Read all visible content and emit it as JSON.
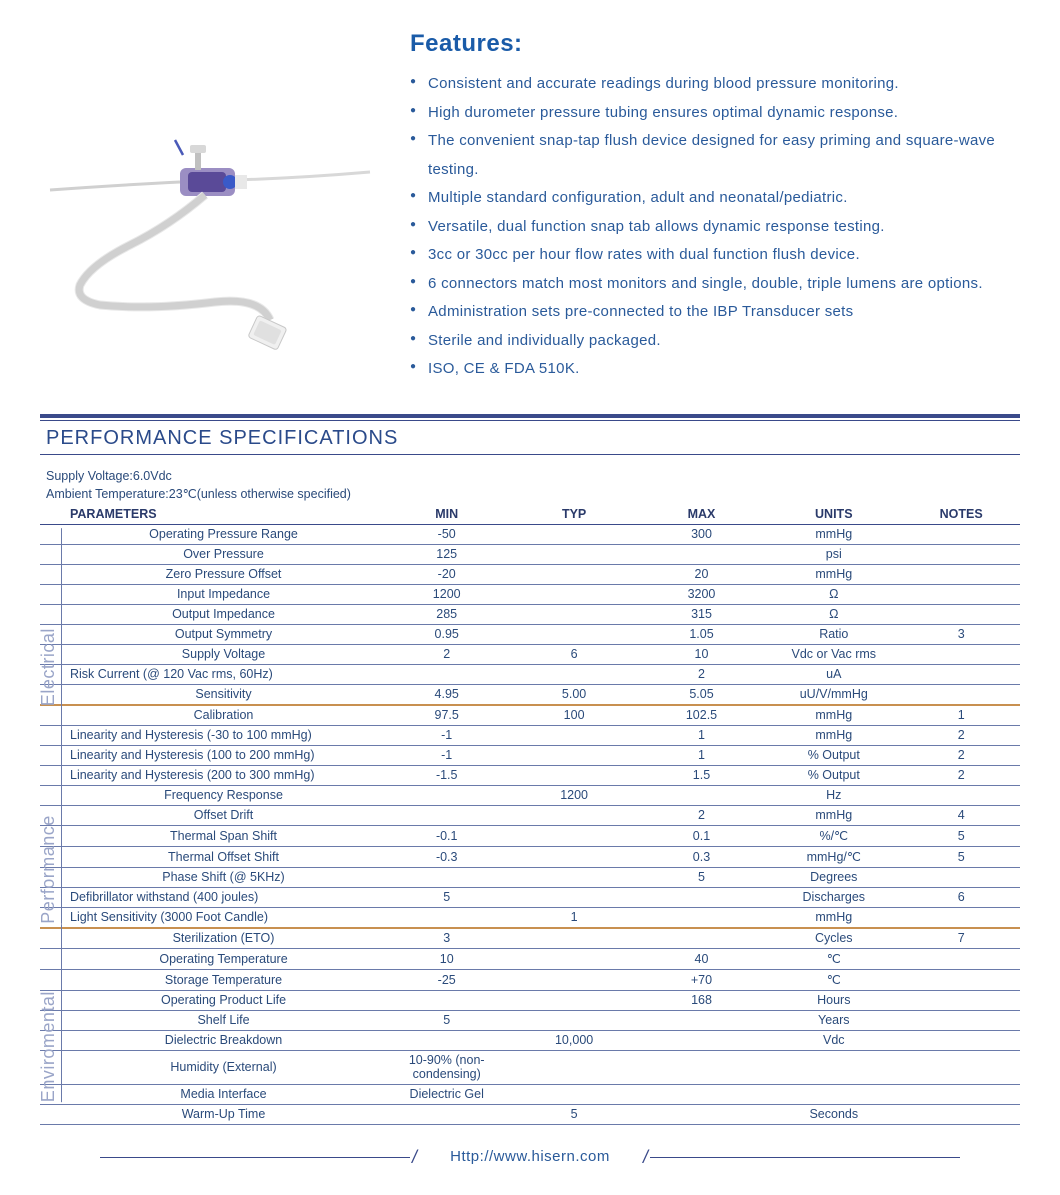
{
  "features": {
    "title": "Features:",
    "items": [
      "Consistent and accurate readings during blood pressure monitoring.",
      "High durometer pressure tubing ensures optimal dynamic response.",
      "The convenient snap-tap flush device designed for easy priming and square-wave testing.",
      "Multiple standard configuration, adult and neonatal/pediatric.",
      "Versatile, dual function snap tab allows dynamic response testing.",
      "3cc or 30cc per hour flow rates with dual function flush device.",
      "6 connectors match most monitors and single, double, triple lumens are options.",
      "Administration sets pre-connected to the IBP Transducer sets",
      "Sterile and individually packaged.",
      "ISO, CE & FDA 510K."
    ]
  },
  "spec": {
    "title": "PERFORMANCE SPECIFICATIONS",
    "meta1": "Supply Voltage:6.0Vdc",
    "meta2": "Ambient Temperature:23℃(unless otherwise specified)",
    "headers": {
      "param": "PARAMETERS",
      "min": "MIN",
      "typ": "TYP",
      "max": "MAX",
      "units": "UNITS",
      "notes": "NOTES"
    },
    "sections": [
      {
        "label": "Electrical",
        "rows": [
          {
            "p": "Operating Pressure Range",
            "min": "-50",
            "typ": "",
            "max": "300",
            "units": "mmHg",
            "notes": ""
          },
          {
            "p": "Over  Pressure",
            "min": "125",
            "typ": "",
            "max": "",
            "units": "psi",
            "notes": ""
          },
          {
            "p": "Zero Pressure Offset",
            "min": "-20",
            "typ": "",
            "max": "20",
            "units": "mmHg",
            "notes": ""
          },
          {
            "p": "Input Impedance",
            "min": "1200",
            "typ": "",
            "max": "3200",
            "units": "Ω",
            "notes": ""
          },
          {
            "p": "Output Impedance",
            "min": "285",
            "typ": "",
            "max": "315",
            "units": "Ω",
            "notes": ""
          },
          {
            "p": "Output Symmetry",
            "min": "0.95",
            "typ": "",
            "max": "1.05",
            "units": "Ratio",
            "notes": "3"
          },
          {
            "p": "Supply Voltage",
            "min": "2",
            "typ": "6",
            "max": "10",
            "units": "Vdc or Vac rms",
            "notes": ""
          },
          {
            "p": "Risk Current (@ 120 Vac rms, 60Hz)",
            "min": "",
            "typ": "",
            "max": "2",
            "units": "uA",
            "notes": "",
            "indent": true
          },
          {
            "p": "Sensitivity",
            "min": "4.95",
            "typ": "5.00",
            "max": "5.05",
            "units": "uU/V/mmHg",
            "notes": ""
          }
        ]
      },
      {
        "label": "Performance",
        "rows": [
          {
            "p": "Calibration",
            "min": "97.5",
            "typ": "100",
            "max": "102.5",
            "units": "mmHg",
            "notes": "1"
          },
          {
            "p": "Linearity and Hysteresis (-30 to 100 mmHg)",
            "min": "-1",
            "typ": "",
            "max": "1",
            "units": "mmHg",
            "notes": "2",
            "indent": true
          },
          {
            "p": "Linearity and Hysteresis (100 to 200 mmHg)",
            "min": "-1",
            "typ": "",
            "max": "1",
            "units": "% Output",
            "notes": "2",
            "indent": true
          },
          {
            "p": "Linearity and Hysteresis (200 to 300 mmHg)",
            "min": "-1.5",
            "typ": "",
            "max": "1.5",
            "units": "% Output",
            "notes": "2",
            "indent": true
          },
          {
            "p": "Frequency Response",
            "min": "",
            "typ": "1200",
            "max": "",
            "units": "Hz",
            "notes": ""
          },
          {
            "p": "Offset Drift",
            "min": "",
            "typ": "",
            "max": "2",
            "units": "mmHg",
            "notes": "4"
          },
          {
            "p": "Thermal Span Shift",
            "min": "-0.1",
            "typ": "",
            "max": "0.1",
            "units": "%/℃",
            "notes": "5"
          },
          {
            "p": "Thermal Offset Shift",
            "min": "-0.3",
            "typ": "",
            "max": "0.3",
            "units": "mmHg/℃",
            "notes": "5"
          },
          {
            "p": "Phase Shift (@ 5KHz)",
            "min": "",
            "typ": "",
            "max": "5",
            "units": "Degrees",
            "notes": ""
          },
          {
            "p": "Defibrillator withstand (400 joules)",
            "min": "5",
            "typ": "",
            "max": "",
            "units": "Discharges",
            "notes": "6",
            "indent": true
          },
          {
            "p": "Light Sensitivity (3000 Foot Candle)",
            "min": "",
            "typ": "1",
            "max": "",
            "units": "mmHg",
            "notes": "",
            "indent": true
          }
        ]
      },
      {
        "label": "Enviromental",
        "rows": [
          {
            "p": "Sterilization (ETO)",
            "min": "3",
            "typ": "",
            "max": "",
            "units": "Cycles",
            "notes": "7"
          },
          {
            "p": "Operating Temperature",
            "min": "10",
            "typ": "",
            "max": "40",
            "units": "℃",
            "notes": ""
          },
          {
            "p": "Storage Temperature",
            "min": "-25",
            "typ": "",
            "max": "+70",
            "units": "℃",
            "notes": ""
          },
          {
            "p": "Operating Product Life",
            "min": "",
            "typ": "",
            "max": "168",
            "units": "Hours",
            "notes": ""
          },
          {
            "p": "Shelf Life",
            "min": "5",
            "typ": "",
            "max": "",
            "units": "Years",
            "notes": ""
          },
          {
            "p": "Dielectric Breakdown",
            "min": "",
            "typ": "10,000",
            "max": "",
            "units": "Vdc",
            "notes": ""
          },
          {
            "p": "Humidity (External)",
            "min": "10-90% (non-condensing)",
            "typ": "",
            "max": "",
            "units": "",
            "notes": ""
          },
          {
            "p": "Media Interface",
            "min": "Dielectric Gel",
            "typ": "",
            "max": "",
            "units": "",
            "notes": ""
          },
          {
            "p": "Warm-Up Time",
            "min": "",
            "typ": "5",
            "max": "",
            "units": "Seconds",
            "notes": ""
          }
        ]
      }
    ]
  },
  "footer": {
    "url": "Http://www.hisern.com"
  },
  "colors": {
    "primary": "#2a5a9a",
    "rule": "#3a4a8a",
    "section_divider": "#c89050",
    "vlabel": "#9aa5c8"
  }
}
